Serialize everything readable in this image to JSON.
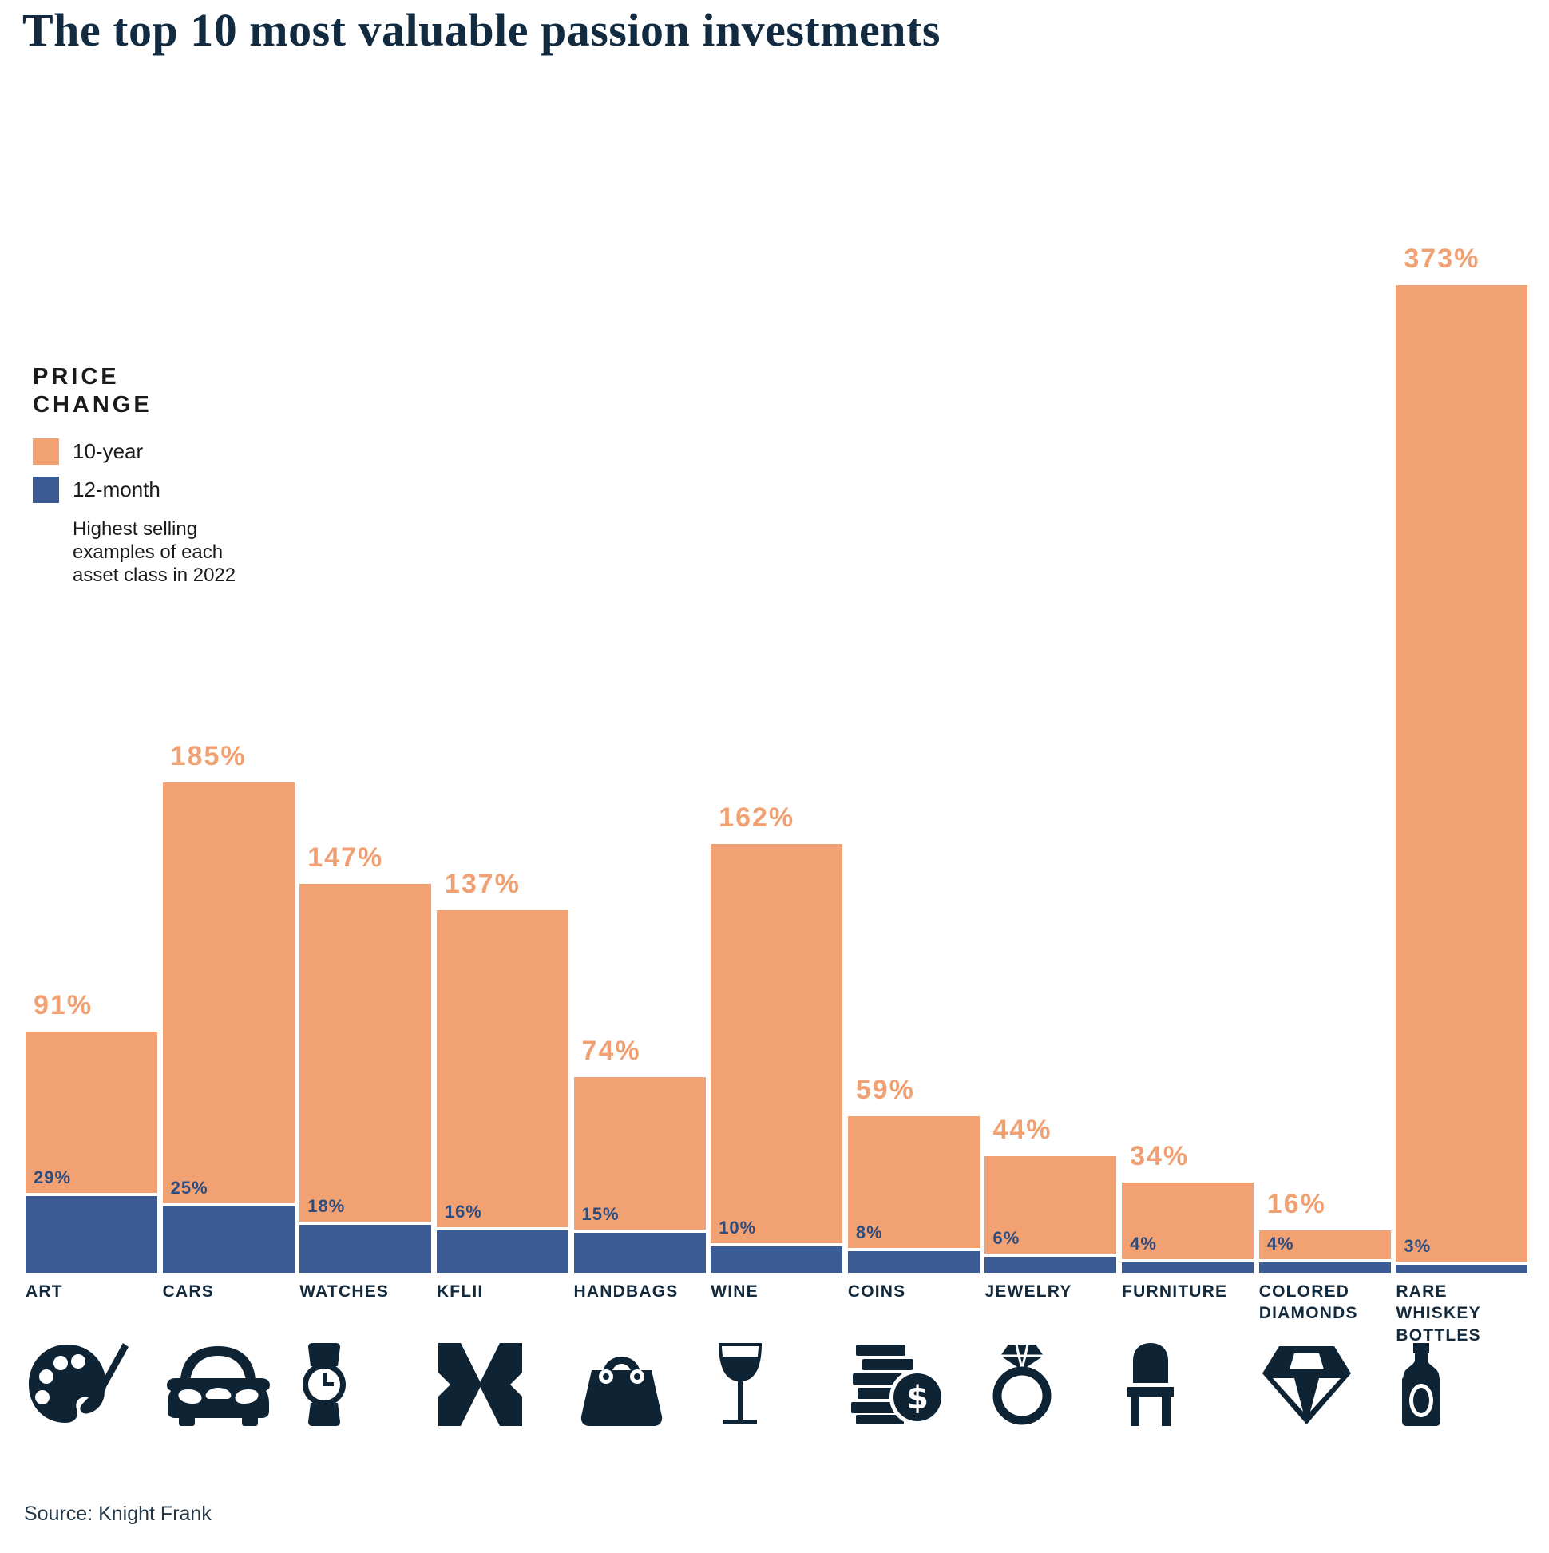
{
  "title": "The top 10 most valuable passion investments",
  "source": "Source: Knight Frank",
  "legend": {
    "heading": "PRICE CHANGE",
    "items": [
      {
        "label": "10-year",
        "color": "#F2A173"
      },
      {
        "label": "12-month",
        "color": "#3A5B94"
      }
    ],
    "note": "Highest selling examples of each asset class in 2022"
  },
  "chart_data": {
    "type": "bar",
    "title": "The top 10 most valuable passion investments",
    "categories": [
      "ART",
      "CARS",
      "WATCHES",
      "KFLII",
      "HANDBAGS",
      "WINE",
      "COINS",
      "JEWELRY",
      "FURNITURE",
      "COLORED DIAMONDS",
      "RARE WHISKEY BOTTLES"
    ],
    "icons": [
      "palette",
      "car",
      "watch",
      "kflii-logo",
      "handbag",
      "wine-glass",
      "coins",
      "ring",
      "chair",
      "diamond",
      "whiskey-bottle"
    ],
    "series": [
      {
        "name": "10-year",
        "unit": "%",
        "color": "#F2A173",
        "label_color": "#F0A173",
        "values": [
          91,
          185,
          147,
          137,
          74,
          162,
          59,
          44,
          34,
          16,
          373
        ]
      },
      {
        "name": "12-month",
        "unit": "%",
        "color": "#3A5B94",
        "label_color": "#2E4D7F",
        "values": [
          29,
          25,
          18,
          16,
          15,
          10,
          8,
          6,
          4,
          4,
          3
        ]
      }
    ],
    "ylim": [
      0,
      373
    ],
    "grid": false,
    "axes_shown": false,
    "legend_position": "upper-left",
    "value_labels": "above-bars, suffix %"
  }
}
